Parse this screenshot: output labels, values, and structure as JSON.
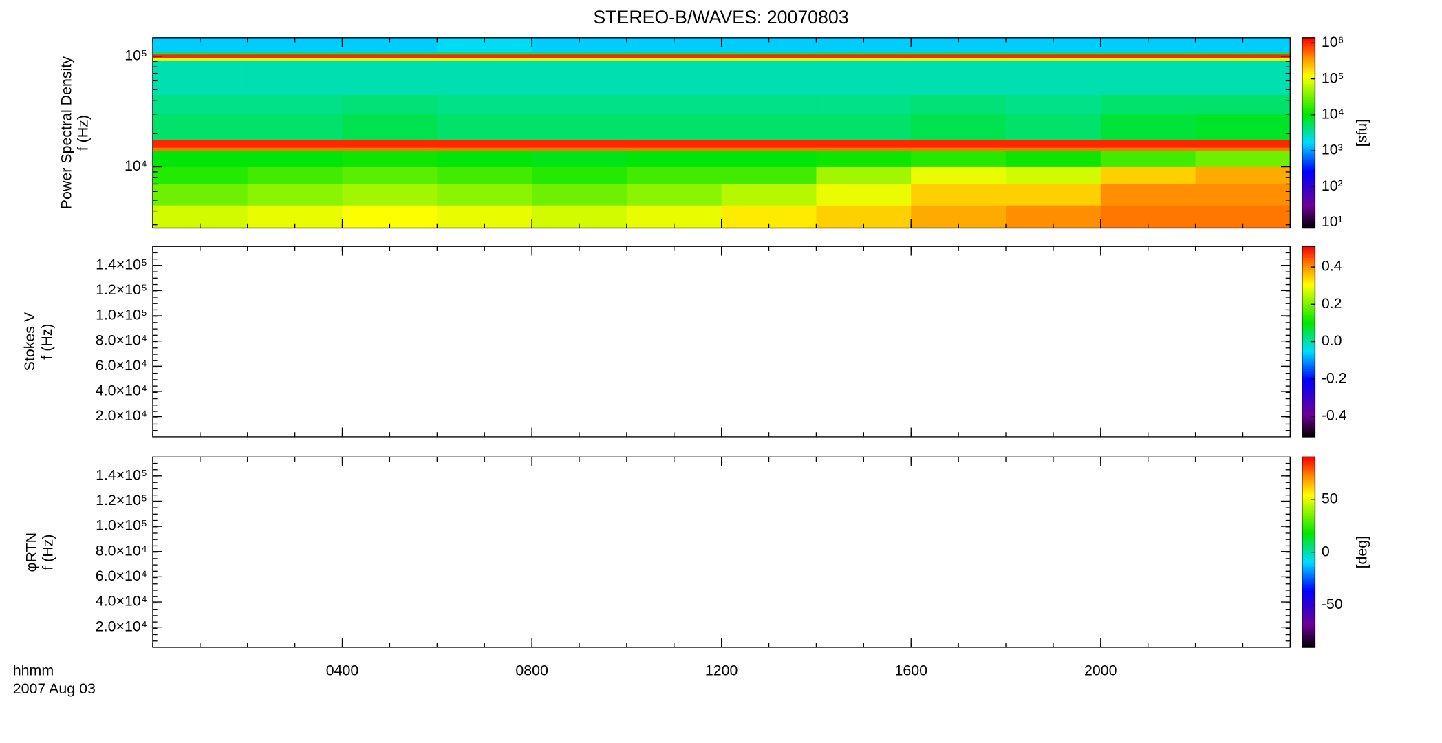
{
  "chart_data": [
    {
      "type": "heatmap",
      "title": "STEREO-B/WAVES: 20070803",
      "y_label": [
        "Power Spectral Density",
        "f (Hz)"
      ],
      "xlim": [
        0,
        24
      ],
      "ylog": true,
      "ylim": [
        2800,
        147000
      ],
      "yticks": [
        {
          "value": 10000,
          "label": "10⁴"
        },
        {
          "value": 100000,
          "label": "10⁵"
        }
      ],
      "x_edges": [
        0,
        2,
        4,
        6,
        8,
        10,
        12,
        14,
        16,
        18,
        20,
        22,
        24
      ],
      "y_edges": [
        2800,
        4500,
        7000,
        10000,
        14000,
        15000,
        17500,
        30000,
        45000,
        92000,
        96000,
        104000,
        110000,
        147000
      ],
      "z": [
        [
          80000,
          100000,
          120000,
          100000,
          80000,
          100000,
          150000,
          200000,
          300000,
          400000,
          500000,
          500000
        ],
        [
          30000,
          40000,
          50000,
          40000,
          30000,
          40000,
          60000,
          100000,
          200000,
          200000,
          400000,
          400000
        ],
        [
          15000,
          20000,
          25000,
          20000,
          15000,
          20000,
          20000,
          50000,
          100000,
          80000,
          200000,
          300000
        ],
        [
          10000,
          10000,
          12000,
          10000,
          9000,
          10000,
          10000,
          12000,
          15000,
          12000,
          20000,
          30000
        ],
        [
          500000,
          500000,
          500000,
          500000,
          500000,
          500000,
          500000,
          500000,
          500000,
          500000,
          500000,
          500000
        ],
        [
          1000000,
          1000000,
          1000000,
          1000000,
          1000000,
          1000000,
          1000000,
          1000000,
          1000000,
          1000000,
          1000000,
          1000000
        ],
        [
          5000,
          5000,
          6000,
          5000,
          5000,
          5000,
          5000,
          5000,
          6000,
          5000,
          7000,
          8000
        ],
        [
          4000,
          4000,
          4500,
          4000,
          4000,
          4000,
          4000,
          4000,
          4500,
          4000,
          5000,
          5000
        ],
        [
          3000,
          3000,
          3000,
          3000,
          3000,
          3000,
          3000,
          3000,
          3000,
          3000,
          3000,
          3000
        ],
        [
          100000,
          100000,
          100000,
          100000,
          100000,
          100000,
          100000,
          100000,
          100000,
          100000,
          100000,
          100000
        ],
        [
          1000000,
          1000000,
          1000000,
          1000000,
          1000000,
          1000000,
          1000000,
          1000000,
          1000000,
          1000000,
          1000000,
          1000000
        ],
        [
          5000,
          5000,
          5000,
          5000,
          5000,
          5000,
          5000,
          5000,
          5000,
          5000,
          5000,
          5000
        ],
        [
          1500,
          1500,
          1500,
          1800,
          1500,
          1500,
          1500,
          1500,
          1500,
          1500,
          1500,
          1500
        ]
      ],
      "colormap": "rainbow",
      "zlog": true,
      "zlim": [
        7,
        1400000
      ],
      "zticks": [
        {
          "value": 10,
          "label": "10¹"
        },
        {
          "value": 100,
          "label": "10²"
        },
        {
          "value": 1000,
          "label": "10³"
        },
        {
          "value": 10000,
          "label": "10⁴"
        },
        {
          "value": 100000,
          "label": "10⁵"
        },
        {
          "value": 1000000,
          "label": "10⁶"
        }
      ],
      "z_label": "[sfu]"
    },
    {
      "type": "heatmap",
      "y_label": [
        "Stokes V",
        "f (Hz)"
      ],
      "xlim": [
        0,
        24
      ],
      "ylim": [
        4000,
        155000
      ],
      "yticks": [
        {
          "value": 20000,
          "label": "2.0×10⁴"
        },
        {
          "value": 40000,
          "label": "4.0×10⁴"
        },
        {
          "value": 60000,
          "label": "6.0×10⁴"
        },
        {
          "value": 80000,
          "label": "8.0×10⁴"
        },
        {
          "value": 100000,
          "label": "1.0×10⁵"
        },
        {
          "value": 120000,
          "label": "1.2×10⁵"
        },
        {
          "value": 140000,
          "label": "1.4×10⁵"
        }
      ],
      "colormap": "rainbow",
      "zlim": [
        -0.51,
        0.51
      ],
      "zticks": [
        -0.4,
        -0.2,
        {
          "value": 0,
          "label": "0.0"
        },
        0.2,
        0.4
      ]
    },
    {
      "type": "heatmap",
      "y_label": [
        "φRTN",
        "f (Hz)"
      ],
      "xlim": [
        0,
        24
      ],
      "ylim": [
        4000,
        155000
      ],
      "yticks": [
        {
          "value": 20000,
          "label": "2.0×10⁴"
        },
        {
          "value": 40000,
          "label": "4.0×10⁴"
        },
        {
          "value": 60000,
          "label": "6.0×10⁴"
        },
        {
          "value": 80000,
          "label": "8.0×10⁴"
        },
        {
          "value": 100000,
          "label": "1.0×10⁵"
        },
        {
          "value": 120000,
          "label": "1.2×10⁵"
        },
        {
          "value": 140000,
          "label": "1.4×10⁵"
        }
      ],
      "xticks": [
        {
          "value": 4,
          "label": "0400"
        },
        {
          "value": 8,
          "label": "0800"
        },
        {
          "value": 12,
          "label": "1200"
        },
        {
          "value": 16,
          "label": "1600"
        },
        {
          "value": 20,
          "label": "2000"
        }
      ],
      "x_label": [
        "hhmm",
        "2007 Aug 03"
      ],
      "colormap": "rainbow",
      "zlim": [
        -90,
        90
      ],
      "zticks": [
        -50,
        0,
        50
      ],
      "z_label": "[deg]"
    }
  ]
}
